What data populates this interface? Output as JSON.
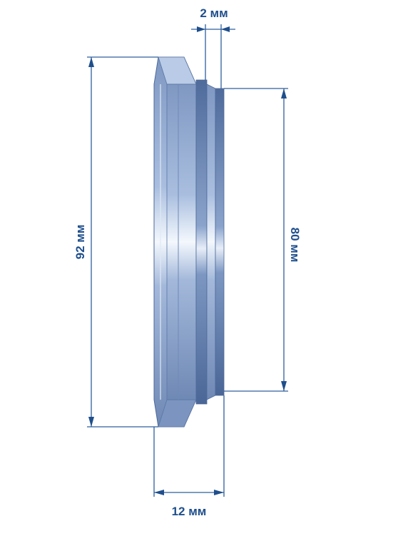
{
  "diagram": {
    "type": "seal-ring-dimension-drawing",
    "dimensions": {
      "top_gap": "2 мм",
      "outer_diameter": "92 мм",
      "inner_diameter": "80 мм",
      "width": "12 мм"
    },
    "colors": {
      "dimension": "#1f4f8c",
      "ring_dark": "#5d79a8",
      "ring_mid": "#8ea7cf",
      "ring_light": "#c9d7ec",
      "highlight": "#ffffff"
    }
  }
}
